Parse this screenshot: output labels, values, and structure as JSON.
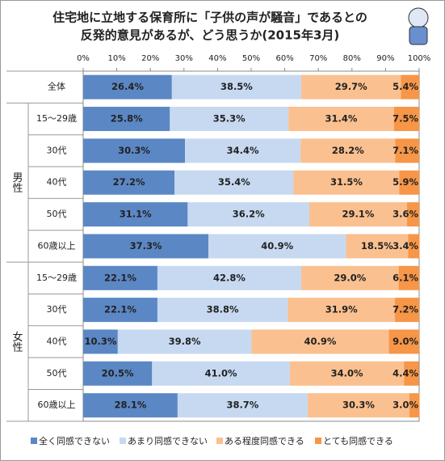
{
  "chart_data": {
    "type": "stacked_bar_horizontal",
    "title": [
      "住宅地に立地する保育所に「子供の声が騒音」であるとの",
      "反発的意見があるが、どう思うか(2015年3月)"
    ],
    "categories": [
      "全体",
      "15〜29歳",
      "30代",
      "40代",
      "50代",
      "60歳以上",
      "15〜29歳",
      "30代",
      "40代",
      "50代",
      "60歳以上"
    ],
    "group_labels": [
      "男性",
      "女性"
    ],
    "xlim": [
      0,
      100
    ],
    "xticks": [
      {
        "value": 0,
        "label": "0%"
      },
      {
        "value": 10,
        "label": "10%"
      },
      {
        "value": 20,
        "label": "20%"
      },
      {
        "value": 30,
        "label": "30%"
      },
      {
        "value": 40,
        "label": "40%"
      },
      {
        "value": 50,
        "label": "50%"
      },
      {
        "value": 60,
        "label": "60%"
      },
      {
        "value": 70,
        "label": "70%"
      },
      {
        "value": 80,
        "label": "80%"
      },
      {
        "value": 90,
        "label": "90%"
      },
      {
        "value": 100,
        "label": "100%"
      }
    ],
    "series": [
      {
        "name": "全く同感できない",
        "color": "#5b87c5",
        "values": [
          26.4,
          25.8,
          30.3,
          27.2,
          31.1,
          37.3,
          22.1,
          22.1,
          10.3,
          20.5,
          28.1
        ],
        "value_labels": [
          "26.4%",
          "25.8%",
          "30.3%",
          "27.2%",
          "31.1%",
          "37.3%",
          "22.1%",
          "22.1%",
          "10.3%",
          "20.5%",
          "28.1%"
        ]
      },
      {
        "name": "あまり同感できない",
        "color": "#c6d9f1",
        "values": [
          38.5,
          35.3,
          34.4,
          35.4,
          36.2,
          40.9,
          42.8,
          38.8,
          39.8,
          41.0,
          38.7
        ],
        "value_labels": [
          "38.5%",
          "35.3%",
          "34.4%",
          "35.4%",
          "36.2%",
          "40.9%",
          "42.8%",
          "38.8%",
          "39.8%",
          "41.0%",
          "38.7%"
        ]
      },
      {
        "name": "ある程度同感できる",
        "color": "#fac08f",
        "values": [
          29.7,
          31.4,
          28.2,
          31.5,
          29.1,
          18.5,
          29.0,
          31.9,
          40.9,
          34.0,
          30.3
        ],
        "value_labels": [
          "29.7%",
          "31.4%",
          "28.2%",
          "31.5%",
          "29.1%",
          "18.5%",
          "29.0%",
          "31.9%",
          "40.9%",
          "34.0%",
          "30.3%"
        ]
      },
      {
        "name": "とても同感できる",
        "color": "#f79646",
        "values": [
          5.4,
          7.5,
          7.1,
          5.9,
          3.6,
          3.4,
          6.1,
          7.2,
          9.0,
          4.4,
          3.0
        ],
        "value_labels": [
          "5.4%",
          "7.5%",
          "7.1%",
          "5.9%",
          "3.6%",
          "3.4%",
          "6.1%",
          "7.2%",
          "9.0%",
          "4.4%",
          "3.0%"
        ]
      }
    ]
  }
}
